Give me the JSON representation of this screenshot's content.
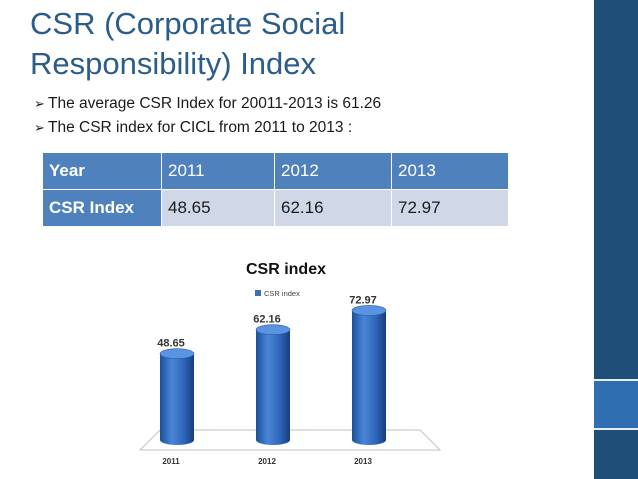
{
  "slide": {
    "title_line1": "CSR (Corporate Social",
    "title_line2": "Responsibility) Index",
    "bullets": [
      "The average CSR Index for 20011-2013  is 61.26",
      "The CSR index for CICL from 2011 to 2013 :"
    ],
    "bullet_glyph": "➢"
  },
  "table": {
    "header": [
      "Year",
      "2011",
      "2012",
      "2013"
    ],
    "row": [
      "CSR Index",
      "48.65",
      "62.16",
      "72.97"
    ]
  },
  "chart_data": {
    "type": "bar",
    "style": "3d-cylinder",
    "title": "CSR index",
    "categories": [
      "2011",
      "2012",
      "2013"
    ],
    "series": [
      {
        "name": "CSR index",
        "values": [
          48.65,
          62.16,
          72.97
        ]
      }
    ],
    "data_labels": [
      "48.65",
      "62.16",
      "72.97"
    ],
    "legend": "top-center",
    "xlabel": "",
    "ylabel": "",
    "ylim": [
      0,
      80
    ],
    "grid": false,
    "color": "#3a6fbf"
  },
  "colors": {
    "title": "#2b5c8a",
    "table_header": "#4f81bd",
    "table_cell": "#d0d8e8",
    "side_band": "#1f4e79",
    "side_band_accent": "#2f6fb1"
  }
}
